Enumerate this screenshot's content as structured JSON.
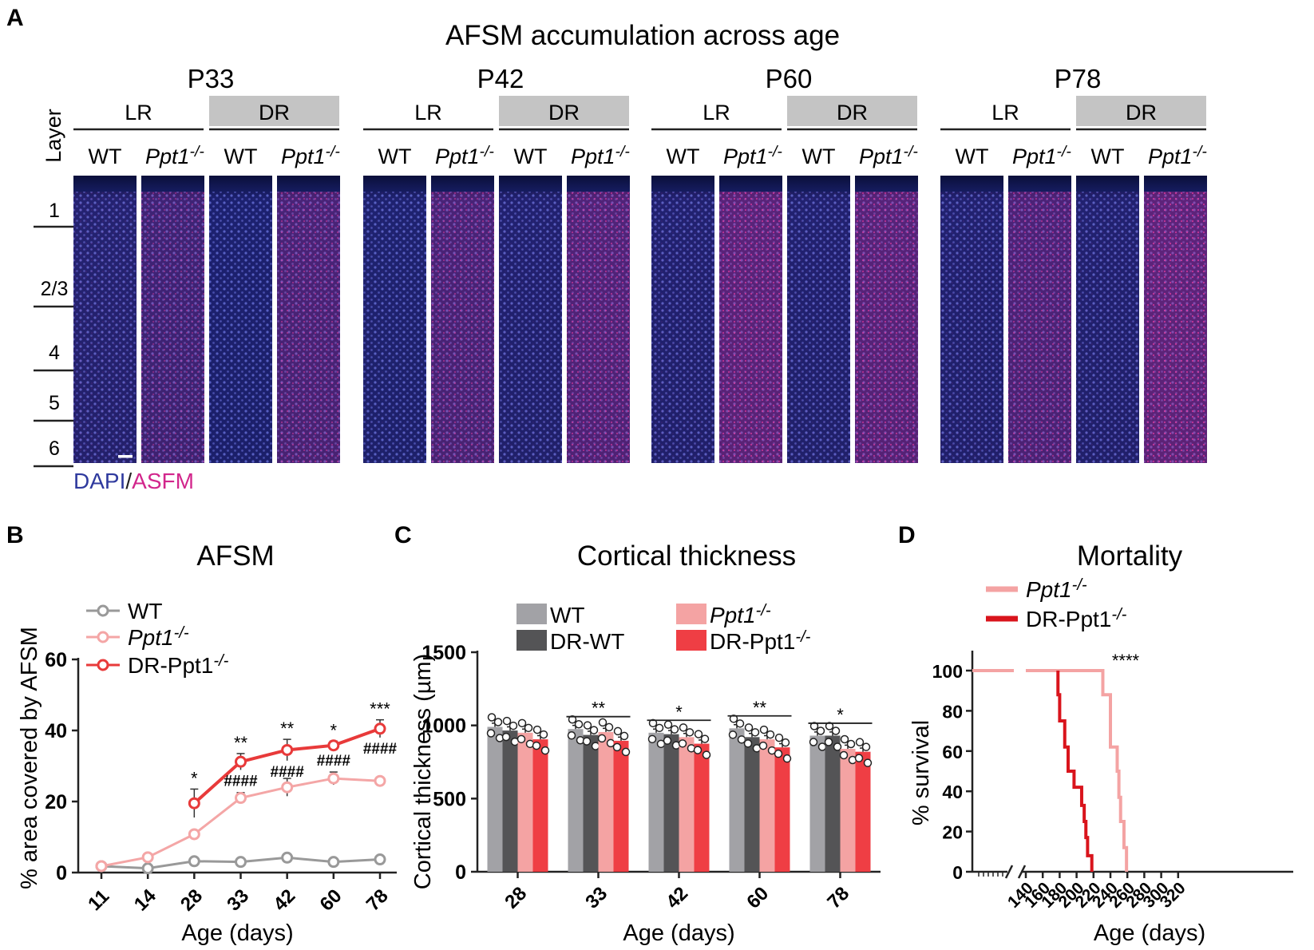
{
  "panel_a": {
    "letter": "A",
    "title": "AFSM accumulation across age",
    "ages": [
      "P33",
      "P42",
      "P60",
      "P78"
    ],
    "diets": [
      "LR",
      "DR"
    ],
    "genotypes": [
      "WT",
      "Ppt1",
      "-/-"
    ],
    "layer_title": "Layer",
    "layers": [
      "1",
      "2/3",
      "4",
      "5",
      "6"
    ],
    "stain_dapi": "DAPI",
    "stain_sep": "/",
    "stain_asfm": "ASFM",
    "colors": {
      "dapi": "#2f3a9e",
      "asfm": "#d2268c",
      "dr_box": "#c4c4c4"
    }
  },
  "chart_data": [
    {
      "panel": "B",
      "type": "line",
      "title": "AFSM",
      "xlabel": "Age (days)",
      "ylabel": "% area covered by AFSM",
      "categories": [
        "11",
        "14",
        "28",
        "33",
        "42",
        "60",
        "78"
      ],
      "ylim": [
        0,
        60
      ],
      "yticks": [
        "0",
        "20",
        "40",
        "60"
      ],
      "series": [
        {
          "name": "WT",
          "color": "#999999",
          "values": [
            1.8,
            1.2,
            3.2,
            3.0,
            4.2,
            3.0,
            3.7
          ],
          "err": [
            0.3,
            0.3,
            0.4,
            0.4,
            0.5,
            0.4,
            0.5
          ]
        },
        {
          "name": "Ppt1",
          "sup": "-/-",
          "color": "#f4a6a6",
          "values": [
            1.8,
            4.3,
            10.8,
            21.0,
            24.0,
            26.5,
            25.8
          ],
          "err": [
            0.3,
            0.6,
            1.0,
            1.5,
            2.5,
            1.8,
            1.0
          ]
        },
        {
          "name": "DR-Ppt1",
          "sup": "-/-",
          "color": "#e83a3a",
          "values": [
            null,
            null,
            19.5,
            31.2,
            34.5,
            35.8,
            40.5
          ],
          "err": [
            0,
            0,
            4.0,
            2.3,
            3.0,
            1.2,
            2.5
          ]
        }
      ],
      "star_labels": [
        "",
        "",
        "*",
        "**",
        "**",
        "*",
        "***"
      ],
      "hash_labels": [
        "",
        "",
        "",
        "####",
        "####",
        "####",
        "####"
      ]
    },
    {
      "panel": "C",
      "type": "bar",
      "title": "Cortical thickness",
      "xlabel": "Age (days)",
      "ylabel": "Cortical thickness (µm)",
      "categories": [
        "28",
        "33",
        "42",
        "60",
        "78"
      ],
      "ylim": [
        0,
        1500
      ],
      "yticks": [
        "0",
        "500",
        "1000",
        "1500"
      ],
      "series": [
        {
          "name": "WT",
          "color": "#a2a2a6",
          "values": [
            990,
            975,
            950,
            980,
            930
          ]
        },
        {
          "name": "DR-WT",
          "color": "#545456",
          "values": [
            965,
            935,
            940,
            920,
            930
          ]
        },
        {
          "name": "Ppt1",
          "sup": "-/-",
          "color": "#f4a3a3",
          "values": [
            950,
            955,
            920,
            905,
            840
          ]
        },
        {
          "name": "DR-Ppt1",
          "sup": "-/-",
          "color": "#ef3e44",
          "values": [
            905,
            895,
            875,
            850,
            820
          ]
        }
      ],
      "sig_labels": [
        "",
        "**",
        "*",
        "**",
        "*"
      ]
    },
    {
      "panel": "D",
      "type": "line",
      "title": "Mortality",
      "xlabel": "Age (days)",
      "ylabel": "% survival",
      "xticks": [
        "140",
        "160",
        "180",
        "200",
        "220",
        "240",
        "260",
        "280",
        "300",
        "320"
      ],
      "ylim": [
        0,
        100
      ],
      "yticks": [
        "0",
        "20",
        "40",
        "60",
        "80",
        "100"
      ],
      "series": [
        {
          "name": "Ppt1",
          "sup": "-/-",
          "color": "#f4a3a3",
          "x": [
            140,
            231,
            231,
            240,
            240,
            248,
            248,
            250,
            250,
            252,
            252,
            256,
            256,
            259,
            259
          ],
          "y": [
            100,
            100,
            88,
            88,
            62,
            62,
            50,
            50,
            37,
            37,
            25,
            25,
            12,
            12,
            0
          ]
        },
        {
          "name": "DR-Ppt1",
          "sup": "-/-",
          "color": "#d9141c",
          "x": [
            178,
            178,
            180,
            180,
            186,
            186,
            190,
            190,
            197,
            197,
            206,
            206,
            209,
            209,
            211,
            211,
            213,
            213,
            218,
            218
          ],
          "y": [
            100,
            88,
            88,
            75,
            75,
            62,
            62,
            50,
            50,
            42,
            42,
            33,
            33,
            25,
            25,
            17,
            17,
            8,
            8,
            0
          ]
        }
      ],
      "sig_label": "****"
    }
  ]
}
